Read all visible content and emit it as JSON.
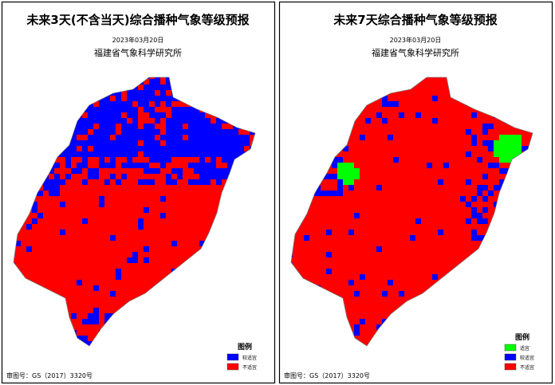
{
  "panels": [
    {
      "title": "未来3天(不含当天)综合播种气象等级预报",
      "date": "2023年03月20日",
      "institute": "福建省气象科学研究所",
      "legend": {
        "title": "图例",
        "items": [
          {
            "label": "较适宜",
            "color": "#0000ff"
          },
          {
            "label": "不适宜",
            "color": "#ff0000"
          }
        ]
      },
      "approval": "审图号：GS（2017）3320号"
    },
    {
      "title": "未来7天综合播种气象等级预报",
      "date": "2023年03月20日",
      "institute": "福建省气象科学研究所",
      "legend": {
        "title": "图例",
        "items": [
          {
            "label": "适宜",
            "color": "#00ff00"
          },
          {
            "label": "较适宜",
            "color": "#0000ff"
          },
          {
            "label": "不适宜",
            "color": "#ff0000"
          }
        ]
      },
      "approval": "审图号：GS（2017）3320号"
    }
  ]
}
